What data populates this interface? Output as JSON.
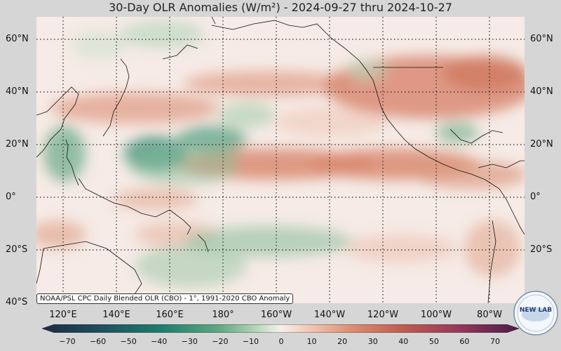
{
  "title": "30-Day OLR Anomalies (W/m²) - 2024-09-27 thru 2024-10-27",
  "source_label": "NOAA/PSL CPC Daily Blended OLR (CBO) - 1°, 1991-2020 CBO Anomaly",
  "lat_labels": [
    "60°N",
    "40°N",
    "20°N",
    "0°",
    "20°S",
    "40°S"
  ],
  "lon_labels": [
    "120°E",
    "140°E",
    "160°E",
    "180°",
    "160°W",
    "140°W",
    "120°W",
    "100°W",
    "80°W"
  ],
  "colorbar_ticks": [
    "−70",
    "−60",
    "−50",
    "−40",
    "−30",
    "−20",
    "−10",
    "0",
    "10",
    "20",
    "30",
    "40",
    "50",
    "60",
    "70"
  ],
  "logo_text": "NEW LAB",
  "colors": {
    "negative_strong": "#1f6f67",
    "negative_mid": "#5aa382",
    "negative_light": "#b7d7bb",
    "neutral": "#f7ece8",
    "positive_light": "#eebfa8",
    "positive_mid": "#d87e64",
    "positive_strong": "#b04848"
  }
}
